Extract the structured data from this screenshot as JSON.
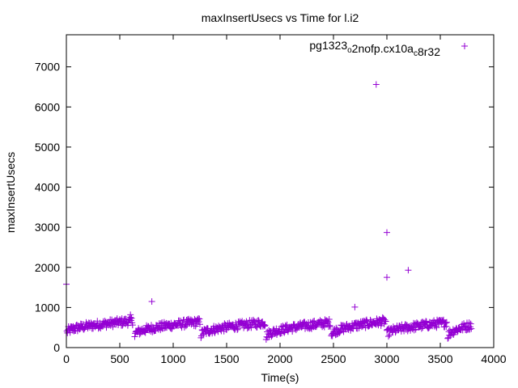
{
  "chart_data": {
    "type": "scatter",
    "title": "maxInsertUsecs vs Time for l.i2",
    "xlabel": "Time(s)",
    "ylabel": "maxInsertUsecs",
    "xlim": [
      0,
      4000
    ],
    "ylim": [
      0,
      7800
    ],
    "xticks": [
      0,
      500,
      1000,
      1500,
      2000,
      2500,
      3000,
      3500,
      4000
    ],
    "yticks": [
      0,
      1000,
      2000,
      3000,
      4000,
      5000,
      6000,
      7000
    ],
    "grid": false,
    "legend_position": "top-right",
    "marker": "+",
    "series_color": "#9400d3",
    "series": [
      {
        "name": "pg1323_o2nofp.cx10a_c8r32",
        "name_parts": [
          {
            "text": "pg1323",
            "sub": false
          },
          {
            "text": "o",
            "sub": true
          },
          {
            "text": "2nofp.cx10a",
            "sub": false
          },
          {
            "text": "c",
            "sub": true
          },
          {
            "text": "8r32",
            "sub": false
          }
        ],
        "segments": [
          {
            "t_start": 5,
            "t_end": 620,
            "start_value": 380,
            "end_value": 660
          },
          {
            "t_start": 640,
            "t_end": 1250,
            "start_value": 320,
            "end_value": 640
          },
          {
            "t_start": 1260,
            "t_end": 1860,
            "start_value": 320,
            "end_value": 620
          },
          {
            "t_start": 1870,
            "t_end": 2470,
            "start_value": 280,
            "end_value": 620
          },
          {
            "t_start": 2480,
            "t_end": 2990,
            "start_value": 320,
            "end_value": 660
          },
          {
            "t_start": 3000,
            "t_end": 3560,
            "start_value": 330,
            "end_value": 620
          },
          {
            "t_start": 3570,
            "t_end": 3790,
            "start_value": 280,
            "end_value": 560
          }
        ],
        "outliers": [
          {
            "x": 0,
            "y": 1580
          },
          {
            "x": 600,
            "y": 820
          },
          {
            "x": 800,
            "y": 1150
          },
          {
            "x": 2700,
            "y": 1010
          },
          {
            "x": 2900,
            "y": 6560
          },
          {
            "x": 3000,
            "y": 2870
          },
          {
            "x": 3000,
            "y": 1750
          },
          {
            "x": 3200,
            "y": 1930
          }
        ]
      }
    ]
  }
}
